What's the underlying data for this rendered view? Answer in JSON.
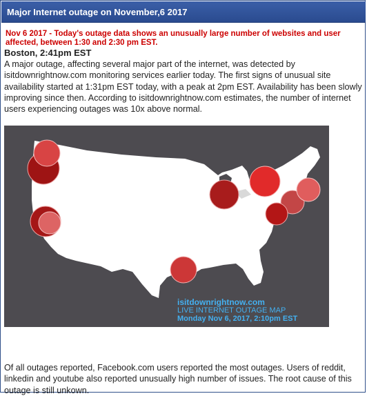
{
  "window": {
    "title": "Major Internet outage on November,6 2017"
  },
  "article": {
    "alert": "Nov 6 2017 - Today's outage data shows an unusually large number of websites and user affected, between 1:30 and 2:30 pm EST.",
    "location_time": "Boston, 2:41pm EST",
    "lead": "A major outage, affecting several major part of the internet, was detected by isitdownrightnow.com monitoring services earlier today. The first signs of unusual site availability started at 1:31pm EST today, with a peak at 2pm EST. Availability has been slowly improving since then. According to isitdownrightnow.com estimates, the number of internet users experiencing outages was 10x above normal.",
    "footer": "Of all outages reported, Facebook.com users reported the most outages. Users of reddit, linkedin and youtube also reported unusually high number of issues. The root cause of this outage is still unkown."
  },
  "map": {
    "brand": "isitdownrightnow.com",
    "caption": "LIVE INTERNET OUTAGE MAP",
    "timestamp": "Monday Nov 6, 2017, 2:10pm EST",
    "colors": {
      "background": "#4d4b50",
      "land": "#ffffff",
      "watermark": "#44b0f0"
    }
  }
}
